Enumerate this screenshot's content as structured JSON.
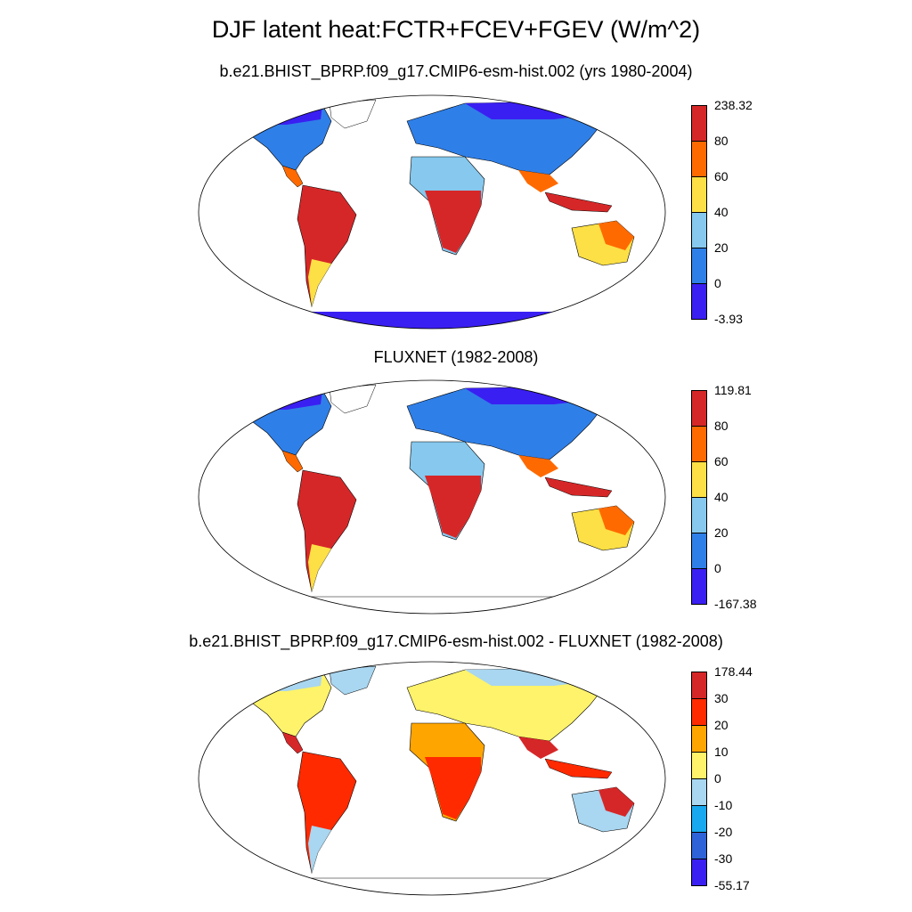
{
  "title": "DJF latent heat:FCTR+FCEV+FGEV (W/m^2)",
  "panels": [
    {
      "subtitle": "b.e21.BHIST_BPRP.f09_g17.CMIP6-esm-hist.002 (yrs 1980-2004)",
      "colorbar": {
        "labels": [
          "238.32",
          "80",
          "60",
          "40",
          "20",
          "0",
          "-3.93"
        ],
        "colors": [
          "#d62728",
          "#ff6a00",
          "#fde045",
          "#86c8ee",
          "#2f7fe8",
          "#3a1ff2"
        ]
      },
      "palette": {
        "nh_high": "#3a1ff2",
        "nh_mid": "#2f7fe8",
        "subtropics": "#86c8ee",
        "tropics": "#d62728",
        "warm": "#ff6a00",
        "mild": "#fde045",
        "ant": "#3a1ff2"
      }
    },
    {
      "subtitle": "FLUXNET (1982-2008)",
      "colorbar": {
        "labels": [
          "119.81",
          "80",
          "60",
          "40",
          "20",
          "0",
          "-167.38"
        ],
        "colors": [
          "#d62728",
          "#ff6a00",
          "#fde045",
          "#86c8ee",
          "#2f7fe8",
          "#3a1ff2"
        ]
      },
      "palette": {
        "nh_high": "#3a1ff2",
        "nh_mid": "#2f7fe8",
        "subtropics": "#86c8ee",
        "tropics": "#d62728",
        "warm": "#ff6a00",
        "mild": "#fde045",
        "ant": "none"
      }
    },
    {
      "subtitle": "b.e21.BHIST_BPRP.f09_g17.CMIP6-esm-hist.002 - FLUXNET (1982-2008)",
      "colorbar": {
        "labels": [
          "178.44",
          "30",
          "20",
          "10",
          "0",
          "-10",
          "-20",
          "-30",
          "-55.17"
        ],
        "colors": [
          "#d62728",
          "#ff2a00",
          "#ffa500",
          "#fef36a",
          "#a9d6f0",
          "#18a8f0",
          "#2d62d8",
          "#3a1ff2"
        ]
      },
      "palette": {
        "nh_high": "#a9d6f0",
        "nh_mid": "#fef36a",
        "subtropics": "#ffa500",
        "tropics": "#ff2a00",
        "warm": "#d62728",
        "mild": "#a9d6f0",
        "ant": "none"
      }
    }
  ]
}
